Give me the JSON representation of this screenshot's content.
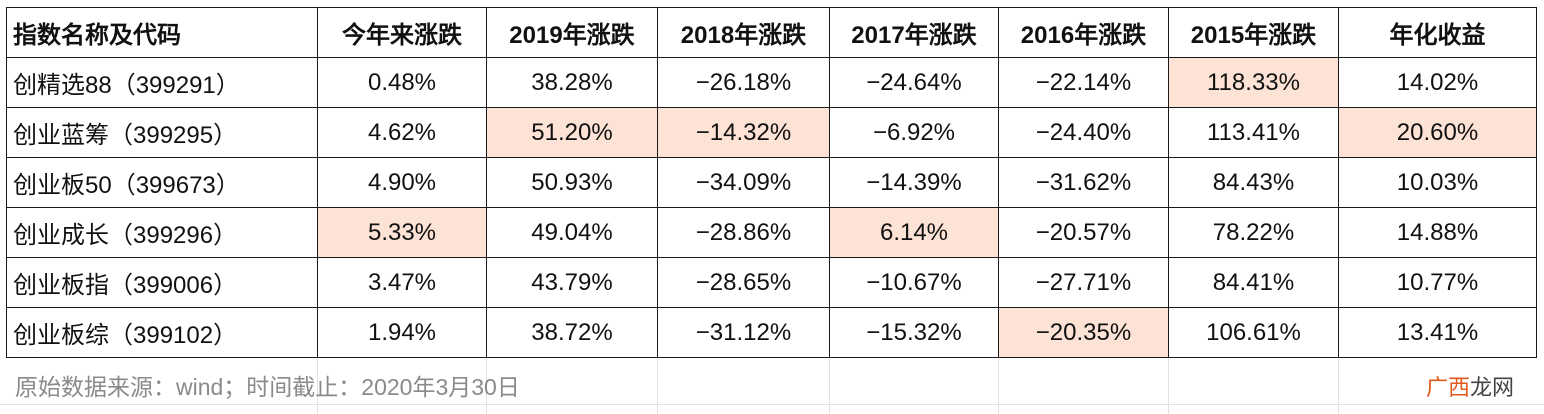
{
  "table": {
    "headers": [
      "指数名称及代码",
      "今年来涨跌",
      "2019年涨跌",
      "2018年涨跌",
      "2017年涨跌",
      "2016年涨跌",
      "2015年涨跌",
      "年化收益"
    ],
    "rows": [
      {
        "cells": [
          "创精选88（399291）",
          "0.48%",
          "38.28%",
          "−26.18%",
          "−24.64%",
          "−22.14%",
          "118.33%",
          "14.02%"
        ],
        "highlight": [
          6
        ]
      },
      {
        "cells": [
          "创业蓝筹（399295）",
          "4.62%",
          "51.20%",
          "−14.32%",
          "−6.92%",
          "−24.40%",
          "113.41%",
          "20.60%"
        ],
        "highlight": [
          2,
          3,
          7
        ]
      },
      {
        "cells": [
          "创业板50（399673）",
          "4.90%",
          "50.93%",
          "−34.09%",
          "−14.39%",
          "−31.62%",
          "84.43%",
          "10.03%"
        ],
        "highlight": []
      },
      {
        "cells": [
          "创业成长（399296）",
          "5.33%",
          "49.04%",
          "−28.86%",
          "6.14%",
          "−20.57%",
          "78.22%",
          "14.88%"
        ],
        "highlight": [
          1,
          4
        ]
      },
      {
        "cells": [
          "创业板指（399006）",
          "3.47%",
          "43.79%",
          "−28.65%",
          "−10.67%",
          "−27.71%",
          "84.41%",
          "10.77%"
        ],
        "highlight": []
      },
      {
        "cells": [
          "创业板综（399102）",
          "1.94%",
          "38.72%",
          "−31.12%",
          "−15.32%",
          "−20.35%",
          "106.61%",
          "13.41%"
        ],
        "highlight": [
          5
        ]
      }
    ]
  },
  "footnote": "原始数据来源：wind；时间截止：2020年3月30日",
  "watermark": {
    "accent": "广西",
    "rest": "龙网"
  },
  "colors": {
    "highlight": "#fde3d5",
    "border": "#1a1a1a",
    "footnote": "#8a8a8a"
  }
}
